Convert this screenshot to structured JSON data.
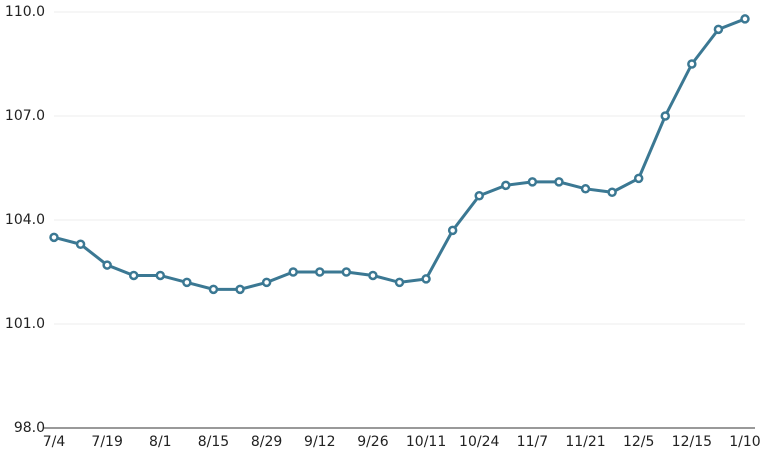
{
  "chart_data": {
    "type": "line",
    "categories": [
      "7/4",
      null,
      "7/19",
      null,
      "8/1",
      null,
      "8/15",
      null,
      "8/29",
      null,
      "9/12",
      null,
      "9/26",
      null,
      "10/11",
      null,
      "10/24",
      null,
      "11/7",
      null,
      "11/21",
      null,
      "12/5",
      null,
      "12/15",
      null,
      "1/10"
    ],
    "series": [
      {
        "color": "#3b7893",
        "values": [
          103.5,
          103.3,
          102.7,
          102.4,
          102.4,
          102.2,
          102.0,
          102.0,
          102.2,
          102.5,
          102.5,
          102.5,
          102.4,
          102.2,
          102.3,
          103.7,
          104.7,
          105.0,
          105.1,
          105.1,
          104.9,
          104.8,
          105.2,
          107.0,
          108.5,
          109.5,
          109.8
        ]
      }
    ],
    "ylim": [
      98,
      110
    ],
    "yticks": [
      {
        "value": 98,
        "label": "98.0"
      },
      {
        "value": 101,
        "label": "101.0"
      },
      {
        "value": 104,
        "label": "104.0"
      },
      {
        "value": 107,
        "label": "107.0"
      },
      {
        "value": 110,
        "label": "110.0"
      }
    ],
    "grid": true
  }
}
